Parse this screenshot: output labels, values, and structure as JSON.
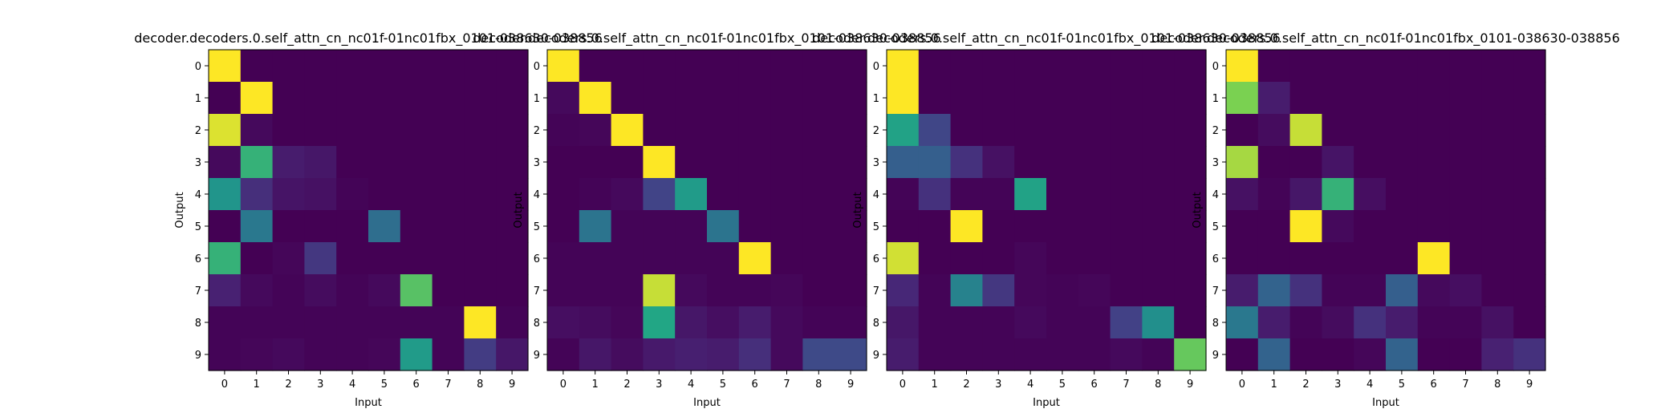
{
  "chart_data": [
    {
      "type": "heatmap",
      "title": "decoder.decoders.0.self_attn_cn_nc01f-01nc01fbx_0101-038630-038856",
      "xlabel": "Input",
      "ylabel": "Output",
      "x_ticks": [
        "0",
        "1",
        "2",
        "3",
        "4",
        "5",
        "6",
        "7",
        "8",
        "9"
      ],
      "y_ticks": [
        "0",
        "1",
        "2",
        "3",
        "4",
        "5",
        "6",
        "7",
        "8",
        "9"
      ],
      "value_range": [
        0,
        1
      ],
      "colormap": "viridis",
      "values": [
        [
          1.0,
          0.0,
          0.0,
          0.0,
          0.0,
          0.0,
          0.0,
          0.0,
          0.0,
          0.0
        ],
        [
          0.0,
          1.0,
          0.0,
          0.0,
          0.0,
          0.0,
          0.0,
          0.0,
          0.0,
          0.0
        ],
        [
          0.97,
          0.03,
          0.0,
          0.0,
          0.0,
          0.0,
          0.0,
          0.0,
          0.0,
          0.0
        ],
        [
          0.03,
          0.78,
          0.1,
          0.08,
          0.0,
          0.0,
          0.0,
          0.0,
          0.0,
          0.0
        ],
        [
          0.65,
          0.17,
          0.07,
          0.06,
          0.01,
          0.0,
          0.0,
          0.0,
          0.0,
          0.0
        ],
        [
          0.0,
          0.5,
          0.0,
          0.0,
          0.0,
          0.45,
          0.0,
          0.0,
          0.0,
          0.0
        ],
        [
          0.78,
          0.0,
          0.02,
          0.2,
          0.0,
          0.0,
          0.0,
          0.0,
          0.0,
          0.0
        ],
        [
          0.12,
          0.03,
          0.01,
          0.04,
          0.01,
          0.03,
          0.83,
          0.0,
          0.0,
          0.0
        ],
        [
          0.01,
          0.01,
          0.01,
          0.01,
          0.01,
          0.01,
          0.01,
          0.01,
          1.0,
          0.01
        ],
        [
          0.01,
          0.02,
          0.03,
          0.01,
          0.01,
          0.02,
          0.68,
          0.01,
          0.22,
          0.08
        ]
      ]
    },
    {
      "type": "heatmap",
      "title": "decoder.decoders.0.self_attn_cn_nc01f-01nc01fbx_0101-038630-038856",
      "xlabel": "Input",
      "ylabel": "Output",
      "x_ticks": [
        "0",
        "1",
        "2",
        "3",
        "4",
        "5",
        "6",
        "7",
        "8",
        "9"
      ],
      "y_ticks": [
        "0",
        "1",
        "2",
        "3",
        "4",
        "5",
        "6",
        "7",
        "8",
        "9"
      ],
      "value_range": [
        0,
        1
      ],
      "colormap": "viridis",
      "values": [
        [
          1.0,
          0.0,
          0.0,
          0.0,
          0.0,
          0.0,
          0.0,
          0.0,
          0.0,
          0.0
        ],
        [
          0.03,
          1.0,
          0.0,
          0.0,
          0.0,
          0.0,
          0.0,
          0.0,
          0.0,
          0.0
        ],
        [
          0.01,
          0.02,
          1.0,
          0.0,
          0.0,
          0.0,
          0.0,
          0.0,
          0.0,
          0.0
        ],
        [
          0.0,
          0.0,
          0.0,
          1.0,
          0.0,
          0.0,
          0.0,
          0.0,
          0.0,
          0.0
        ],
        [
          0.0,
          0.01,
          0.03,
          0.25,
          0.68,
          0.0,
          0.0,
          0.0,
          0.0,
          0.0
        ],
        [
          0.0,
          0.48,
          0.01,
          0.01,
          0.01,
          0.48,
          0.0,
          0.0,
          0.0,
          0.0
        ],
        [
          0.01,
          0.01,
          0.01,
          0.01,
          0.01,
          0.01,
          1.0,
          0.0,
          0.0,
          0.0
        ],
        [
          0.01,
          0.01,
          0.01,
          0.95,
          0.03,
          0.01,
          0.01,
          0.02,
          0.0,
          0.0
        ],
        [
          0.05,
          0.04,
          0.02,
          0.74,
          0.08,
          0.05,
          0.1,
          0.03,
          0.01,
          0.01
        ],
        [
          0.01,
          0.08,
          0.04,
          0.09,
          0.11,
          0.1,
          0.17,
          0.03,
          0.28,
          0.28
        ]
      ]
    },
    {
      "type": "heatmap",
      "title": "decoder.decoders.0.self_attn_cn_nc01f-01nc01fbx_0101-038630-038856",
      "xlabel": "Input",
      "ylabel": "Output",
      "x_ticks": [
        "0",
        "1",
        "2",
        "3",
        "4",
        "5",
        "6",
        "7",
        "8",
        "9"
      ],
      "y_ticks": [
        "0",
        "1",
        "2",
        "3",
        "4",
        "5",
        "6",
        "7",
        "8",
        "9"
      ],
      "value_range": [
        0,
        1
      ],
      "colormap": "viridis",
      "values": [
        [
          1.0,
          0.0,
          0.0,
          0.0,
          0.0,
          0.0,
          0.0,
          0.0,
          0.0,
          0.0
        ],
        [
          1.0,
          0.0,
          0.0,
          0.0,
          0.0,
          0.0,
          0.0,
          0.0,
          0.0,
          0.0
        ],
        [
          0.72,
          0.26,
          0.0,
          0.0,
          0.0,
          0.0,
          0.0,
          0.0,
          0.0,
          0.0
        ],
        [
          0.38,
          0.38,
          0.18,
          0.06,
          0.0,
          0.0,
          0.0,
          0.0,
          0.0,
          0.0
        ],
        [
          0.01,
          0.18,
          0.01,
          0.01,
          0.72,
          0.0,
          0.0,
          0.0,
          0.0,
          0.0
        ],
        [
          0.0,
          0.0,
          1.0,
          0.0,
          0.0,
          0.0,
          0.0,
          0.0,
          0.0,
          0.0
        ],
        [
          0.96,
          0.0,
          0.0,
          0.0,
          0.02,
          0.0,
          0.0,
          0.0,
          0.0,
          0.0
        ],
        [
          0.14,
          0.01,
          0.55,
          0.2,
          0.02,
          0.01,
          0.02,
          0.0,
          0.0,
          0.0
        ],
        [
          0.08,
          0.01,
          0.01,
          0.01,
          0.03,
          0.01,
          0.01,
          0.24,
          0.62,
          0.0
        ],
        [
          0.1,
          0.01,
          0.01,
          0.01,
          0.01,
          0.01,
          0.01,
          0.03,
          0.01,
          0.85
        ]
      ]
    },
    {
      "type": "heatmap",
      "title": "decoder.decoders.0.self_attn_cn_nc01f-01nc01fbx_0101-038630-038856",
      "xlabel": "Input",
      "ylabel": "Output",
      "x_ticks": [
        "0",
        "1",
        "2",
        "3",
        "4",
        "5",
        "6",
        "7",
        "8",
        "9"
      ],
      "y_ticks": [
        "0",
        "1",
        "2",
        "3",
        "4",
        "5",
        "6",
        "7",
        "8",
        "9"
      ],
      "value_range": [
        0,
        1
      ],
      "colormap": "viridis",
      "values": [
        [
          1.0,
          0.0,
          0.0,
          0.0,
          0.0,
          0.0,
          0.0,
          0.0,
          0.0,
          0.0
        ],
        [
          0.88,
          0.1,
          0.0,
          0.0,
          0.0,
          0.0,
          0.0,
          0.0,
          0.0,
          0.0
        ],
        [
          0.0,
          0.04,
          0.95,
          0.0,
          0.0,
          0.0,
          0.0,
          0.0,
          0.0,
          0.0
        ],
        [
          0.92,
          0.0,
          0.0,
          0.07,
          0.0,
          0.0,
          0.0,
          0.0,
          0.0,
          0.0
        ],
        [
          0.06,
          0.01,
          0.08,
          0.78,
          0.05,
          0.0,
          0.0,
          0.0,
          0.0,
          0.0
        ],
        [
          0.0,
          0.0,
          1.0,
          0.03,
          0.0,
          0.0,
          0.0,
          0.0,
          0.0,
          0.0
        ],
        [
          0.0,
          0.0,
          0.0,
          0.0,
          0.0,
          0.0,
          1.0,
          0.0,
          0.0,
          0.0
        ],
        [
          0.1,
          0.4,
          0.18,
          0.01,
          0.01,
          0.38,
          0.03,
          0.05,
          0.0,
          0.0
        ],
        [
          0.5,
          0.1,
          0.01,
          0.04,
          0.18,
          0.1,
          0.01,
          0.01,
          0.06,
          0.0
        ],
        [
          0.0,
          0.4,
          0.0,
          0.0,
          0.02,
          0.4,
          0.0,
          0.0,
          0.12,
          0.18
        ]
      ]
    }
  ]
}
